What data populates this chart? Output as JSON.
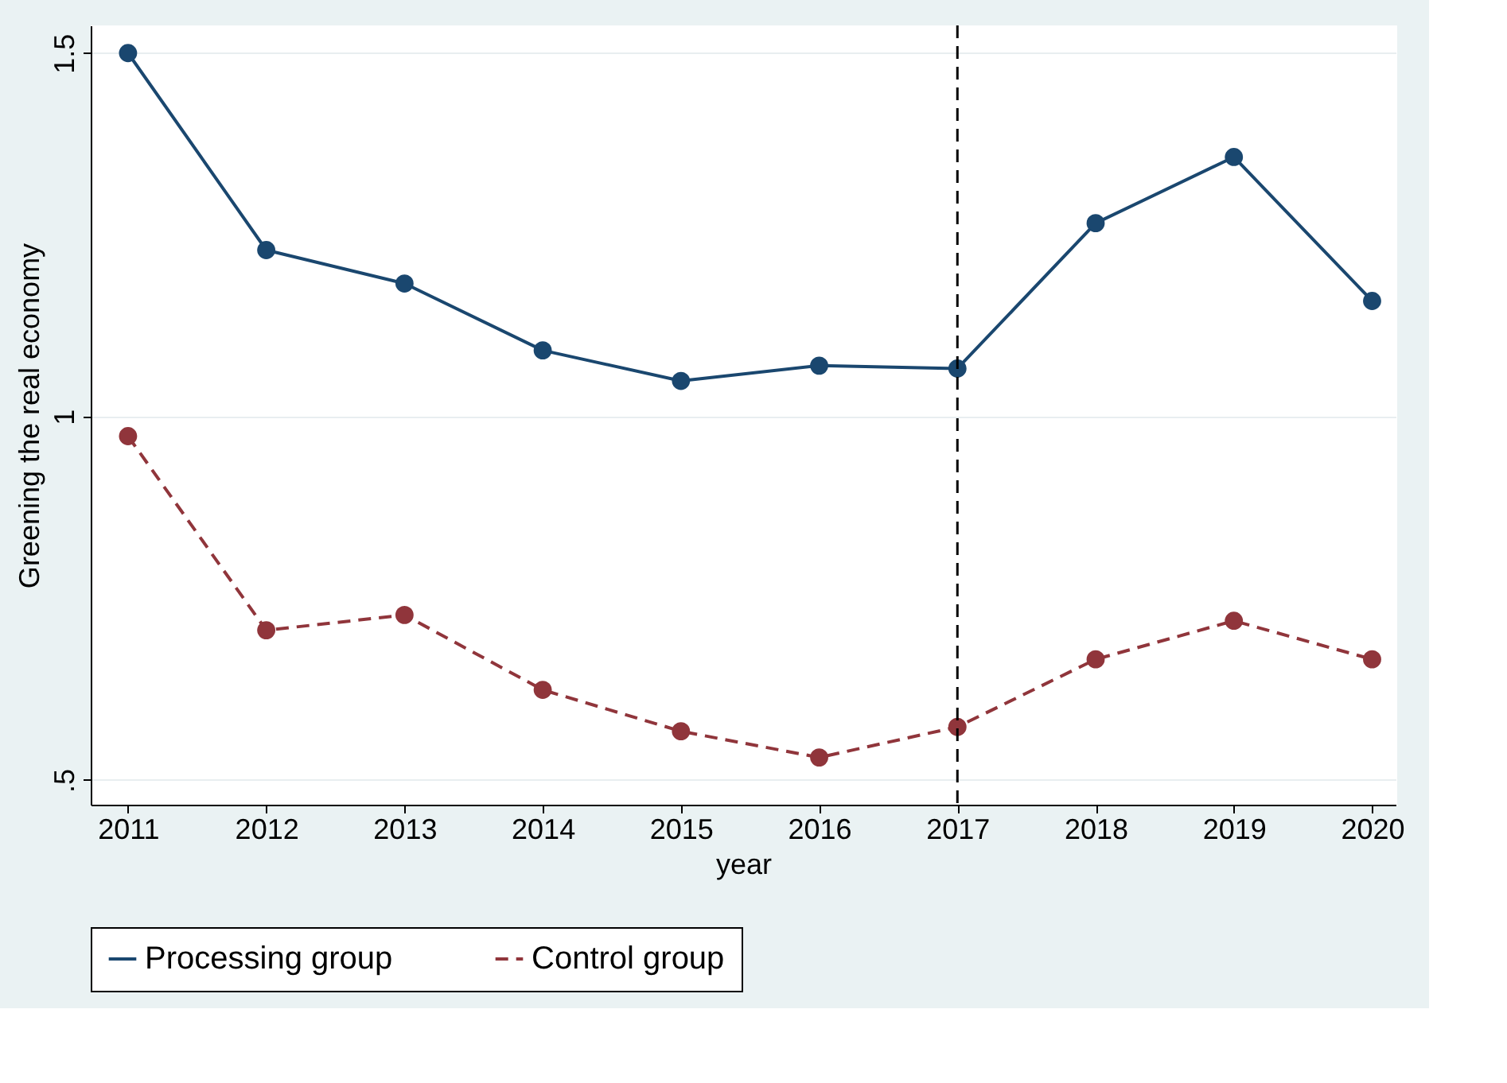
{
  "chart_data": {
    "type": "line",
    "xlabel": "year",
    "ylabel": "Greening the real economy",
    "x": [
      2011,
      2012,
      2013,
      2014,
      2015,
      2016,
      2017,
      2018,
      2019,
      2020
    ],
    "series": [
      {
        "name": "Processing group",
        "color": "#1a476f",
        "line_style": "solid",
        "values": [
          1.5,
          1.229,
          1.183,
          1.091,
          1.049,
          1.07,
          1.066,
          1.266,
          1.357,
          1.159
        ]
      },
      {
        "name": "Control group",
        "color": "#90353b",
        "line_style": "dashed",
        "values": [
          0.973,
          0.706,
          0.727,
          0.624,
          0.567,
          0.531,
          0.573,
          0.666,
          0.719,
          0.666
        ]
      }
    ],
    "xlim": [
      2010.73,
      2020.17
    ],
    "xticks": [
      2011,
      2012,
      2013,
      2014,
      2015,
      2016,
      2017,
      2018,
      2019,
      2020
    ],
    "ylim": [
      0.466,
      1.538
    ],
    "yticks": [
      {
        "value": 0.5,
        "label": ".5"
      },
      1,
      1.5
    ],
    "ref_lines": [
      {
        "axis": "x",
        "value": 2017,
        "label": null,
        "color": "#000000",
        "line_style": "dashed"
      }
    ],
    "grid": "y",
    "legend": "bottom",
    "marker": "circle"
  }
}
